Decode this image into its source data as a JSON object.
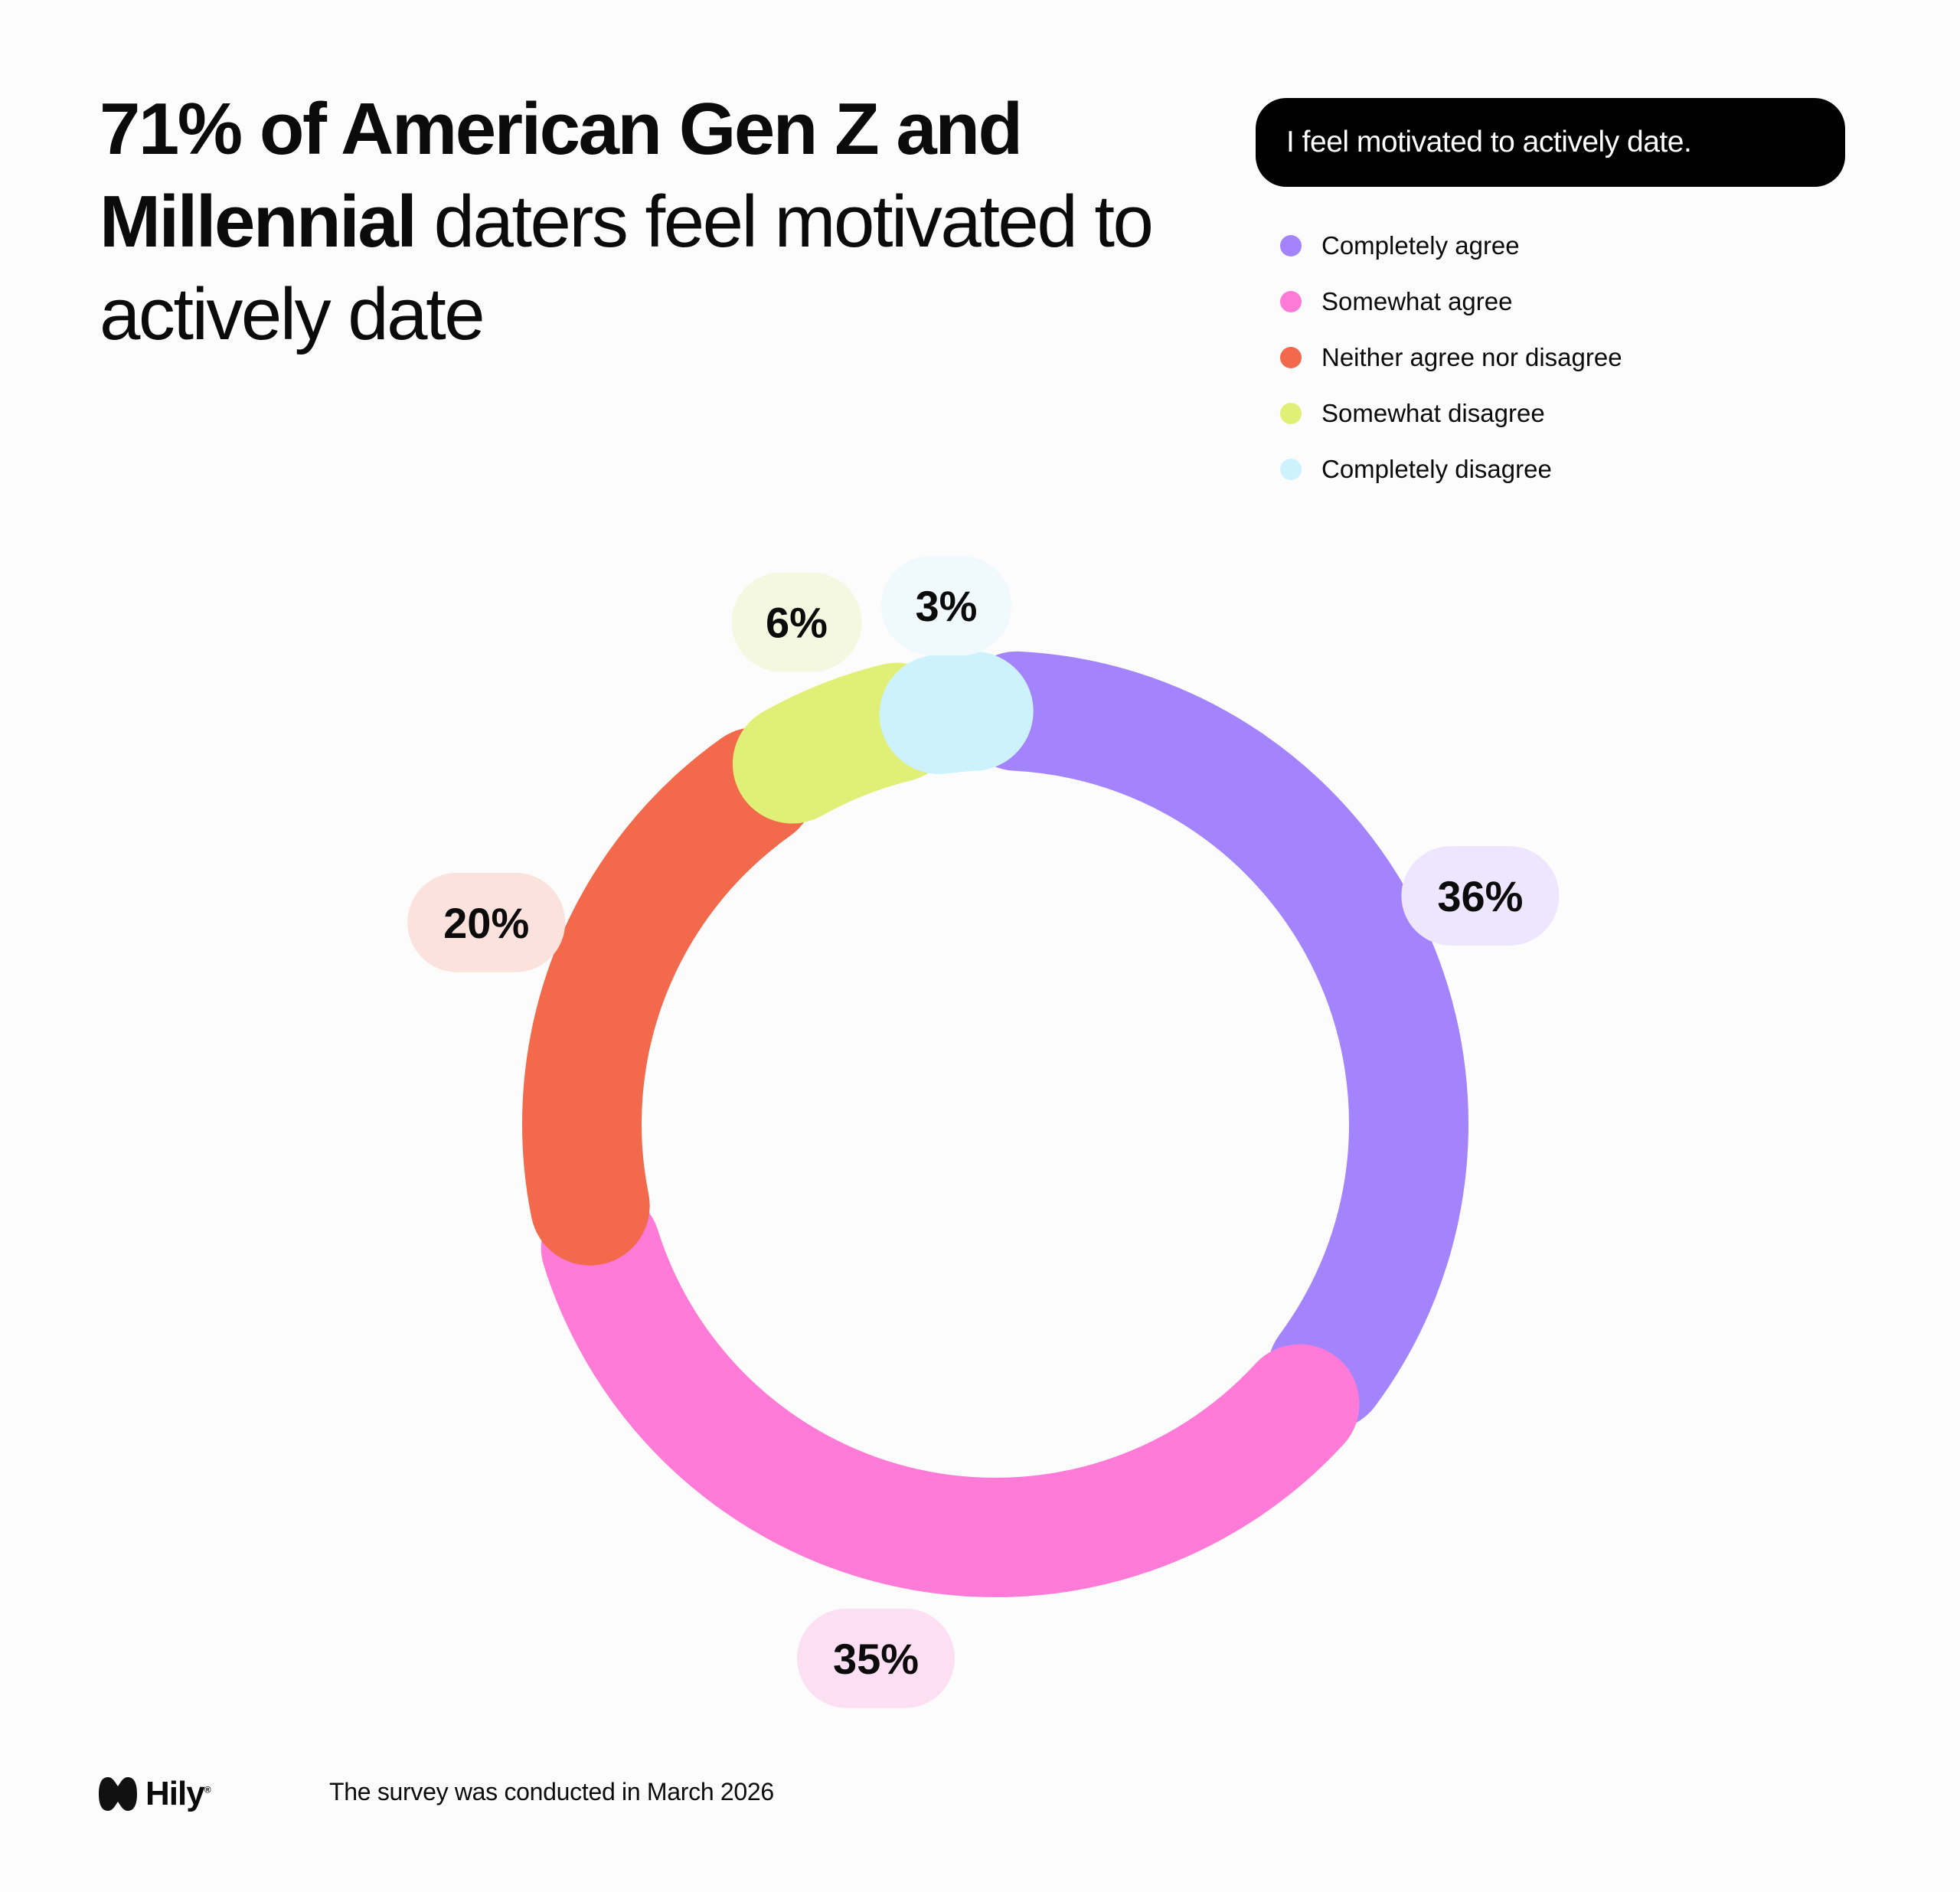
{
  "title": {
    "bold_line": "71% of American Gen Z and",
    "bold_word": "Millennial",
    "normal_rest": " daters feel motivated to actively date"
  },
  "question": "I feel motivated to actively date.",
  "chart_data": {
    "type": "pie",
    "variant": "donut",
    "title": "I feel motivated to actively date.",
    "categories": [
      "Completely agree",
      "Somewhat agree",
      "Neither agree nor disagree",
      "Somewhat disagree",
      "Completely disagree"
    ],
    "values": [
      36,
      35,
      20,
      6,
      3
    ],
    "labels": [
      "36%",
      "35%",
      "20%",
      "6%",
      "3%"
    ],
    "colors": [
      "#a384fd",
      "#ff7bd7",
      "#f26a4b",
      "#e0ef76",
      "#ccf2fd"
    ],
    "label_backgrounds": [
      "#ede6fe",
      "#fddff3",
      "#fce2dc",
      "#f5f8e1",
      "#f0fafd"
    ],
    "legend_position": "top-right"
  },
  "footer": {
    "brand": "Hily",
    "note": "The survey was conducted in March 2026"
  }
}
